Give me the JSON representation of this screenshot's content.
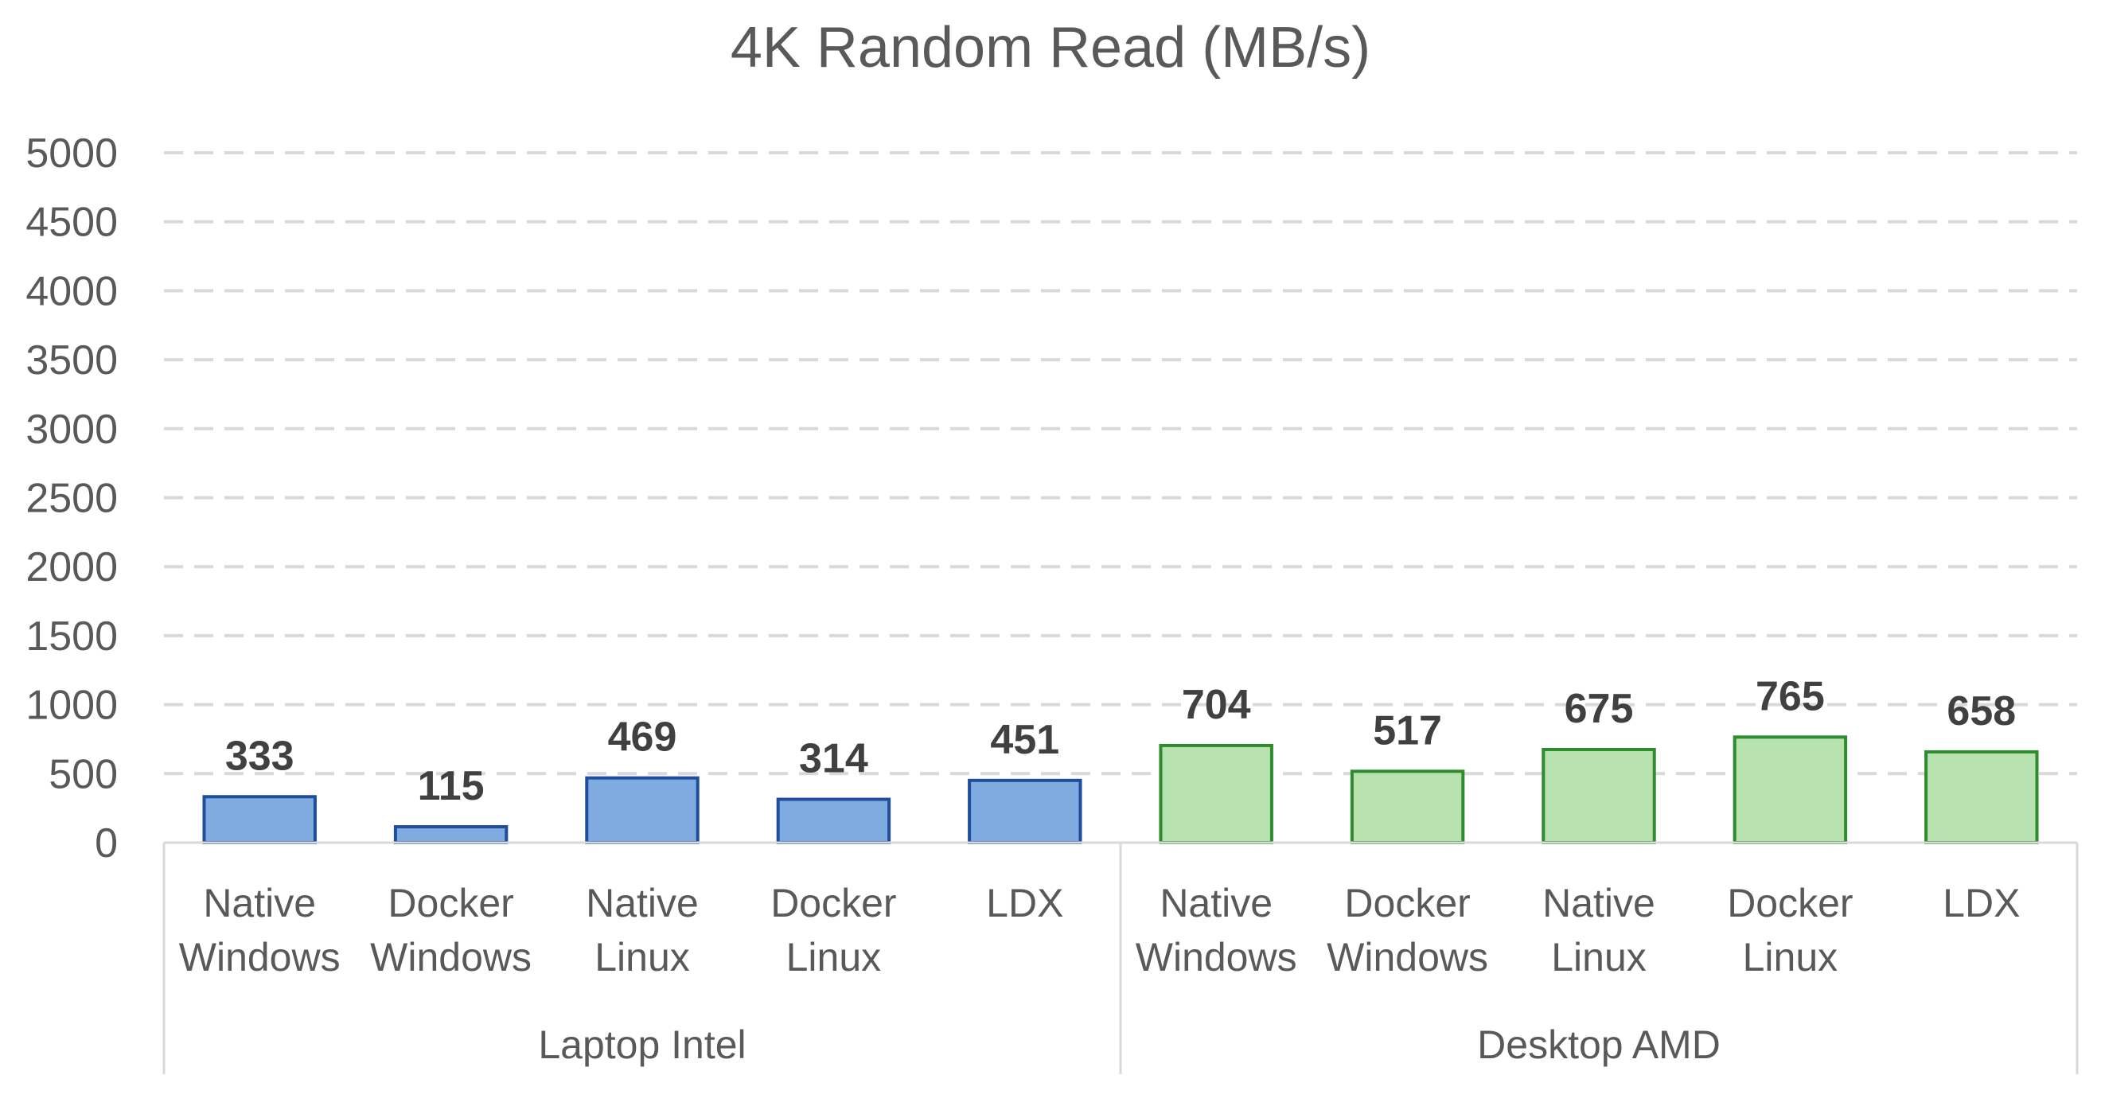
{
  "chart_data": {
    "type": "bar",
    "title": "4K Random Read  (MB/s)",
    "xlabel": "",
    "ylabel": "",
    "ylim": [
      0,
      5000
    ],
    "yticks": [
      0,
      500,
      1000,
      1500,
      2000,
      2500,
      3000,
      3500,
      4000,
      4500,
      5000
    ],
    "grid": "horizontal dashed",
    "legend": "none",
    "groups": [
      {
        "name": "Laptop Intel",
        "color": "#7fabe1",
        "edge": "#1f4e9c",
        "bars": [
          {
            "label": [
              "Native",
              "Windows"
            ],
            "value": 333
          },
          {
            "label": [
              "Docker",
              "Windows"
            ],
            "value": 115
          },
          {
            "label": [
              "Native",
              "Linux"
            ],
            "value": 469
          },
          {
            "label": [
              "Docker",
              "Linux"
            ],
            "value": 314
          },
          {
            "label": [
              "LDX"
            ],
            "value": 451
          }
        ]
      },
      {
        "name": "Desktop AMD",
        "color": "#b8e1b0",
        "edge": "#2e8b2e",
        "bars": [
          {
            "label": [
              "Native",
              "Windows"
            ],
            "value": 704
          },
          {
            "label": [
              "Docker",
              "Windows"
            ],
            "value": 517
          },
          {
            "label": [
              "Native",
              "Linux"
            ],
            "value": 675
          },
          {
            "label": [
              "Docker",
              "Linux"
            ],
            "value": 765
          },
          {
            "label": [
              "LDX"
            ],
            "value": 658
          }
        ]
      }
    ]
  }
}
